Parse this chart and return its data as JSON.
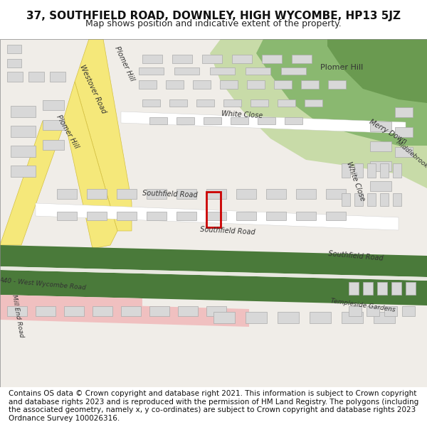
{
  "title": "37, SOUTHFIELD ROAD, DOWNLEY, HIGH WYCOMBE, HP13 5JZ",
  "subtitle": "Map shows position and indicative extent of the property.",
  "footer": "Contains OS data © Crown copyright and database right 2021. This information is subject to Crown copyright and database rights 2023 and is reproduced with the permission of HM Land Registry. The polygons (including the associated geometry, namely x, y co-ordinates) are subject to Crown copyright and database rights 2023 Ordnance Survey 100026316.",
  "title_fontsize": 11,
  "subtitle_fontsize": 9,
  "footer_fontsize": 7.5,
  "background_color": "#ffffff",
  "map_bg": "#f0ede8",
  "green_dark": "#5a7a4a",
  "green_light": "#c8dba8",
  "road_yellow": "#f5e87a",
  "road_white": "#ffffff",
  "road_green": "#4a7a3a",
  "building_fill": "#d8d8d8",
  "building_edge": "#aaaaaa",
  "plot_color": "#cc0000",
  "road_label_color": "#333333",
  "pink_road": "#f0c0c0"
}
